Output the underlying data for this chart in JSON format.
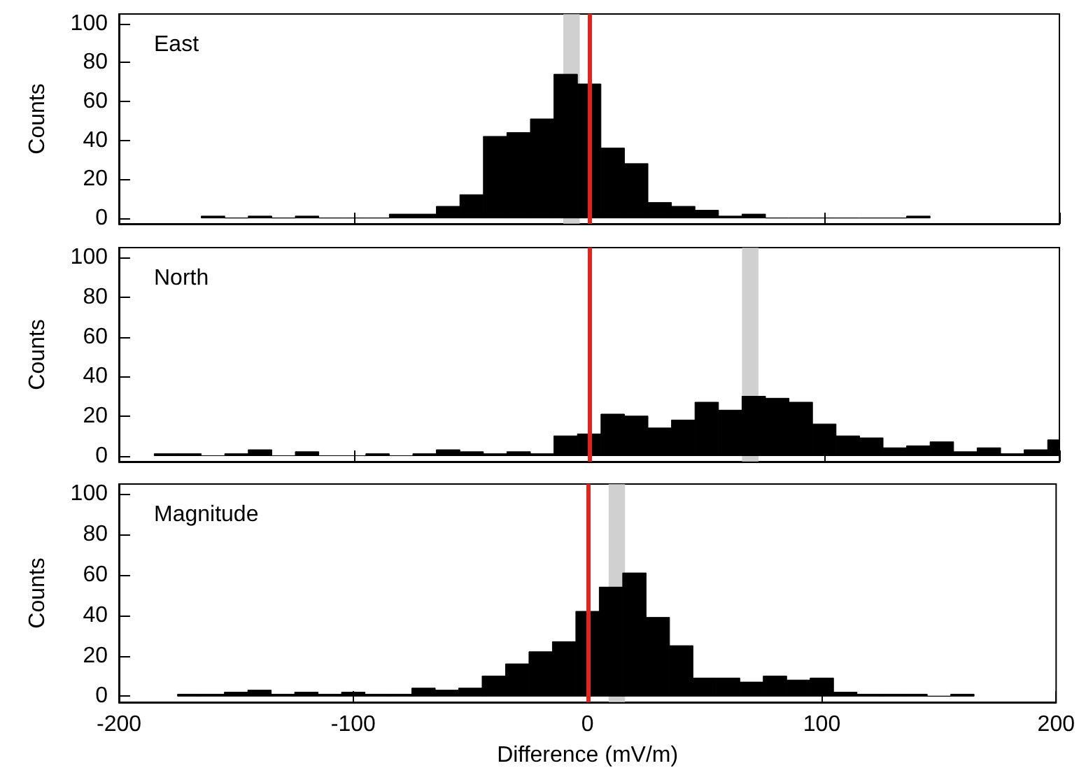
{
  "chart_data": [
    {
      "type": "histogram",
      "ylabel": "Counts",
      "annotations": [
        "East"
      ],
      "color": "#000000",
      "tick_labels": "y",
      "bins": [
        -165,
        -155,
        -145,
        -135,
        -125,
        -115,
        -105,
        -95,
        -85,
        -75,
        -65,
        -55,
        -45,
        -35,
        -25,
        -15,
        -5,
        5,
        15,
        25,
        35,
        45,
        55,
        65,
        75,
        85,
        95,
        105,
        115,
        125,
        135,
        145
      ],
      "values": [
        1,
        0,
        1,
        0,
        1,
        0,
        0,
        0,
        2,
        2,
        6,
        12,
        42,
        44,
        51,
        74,
        69,
        36,
        28,
        8,
        6,
        4,
        1,
        2,
        0,
        0,
        0,
        0,
        0,
        0,
        1
      ],
      "xlim": [
        -200,
        200
      ],
      "xticks": [
        -200,
        -100,
        0,
        100,
        200
      ],
      "ylim": [
        -3,
        105
      ],
      "yticks": [
        0,
        20,
        40,
        60,
        80,
        100
      ],
      "ref_lines": [
        {
          "axis": "x",
          "value": 0,
          "color": "#e3241c"
        }
      ],
      "bands": [
        {
          "axis": "x",
          "from": -11,
          "to": -4,
          "color": "#c4c4c4"
        }
      ]
    },
    {
      "type": "histogram",
      "ylabel": "Counts",
      "annotations": [
        "North"
      ],
      "color": "#000000",
      "tick_labels": "y",
      "bins": [
        -185,
        -175,
        -165,
        -155,
        -145,
        -135,
        -125,
        -115,
        -105,
        -95,
        -85,
        -75,
        -65,
        -55,
        -45,
        -35,
        -25,
        -15,
        -5,
        5,
        15,
        25,
        35,
        45,
        55,
        65,
        75,
        85,
        95,
        105,
        115,
        125,
        135,
        145,
        155,
        165,
        175,
        185,
        195,
        200
      ],
      "values": [
        1,
        1,
        0,
        1,
        3,
        0,
        2,
        0,
        0,
        1,
        0,
        1,
        3,
        2,
        1,
        2,
        1,
        10,
        11,
        21,
        20,
        14,
        18,
        27,
        23,
        30,
        29,
        27,
        16,
        10,
        9,
        4,
        5,
        7,
        2,
        4,
        1,
        3,
        8
      ],
      "xlim": [
        -200,
        200
      ],
      "xticks": [
        -200,
        -100,
        0,
        100,
        200
      ],
      "ylim": [
        -3,
        105
      ],
      "yticks": [
        0,
        20,
        40,
        60,
        80,
        100
      ],
      "ref_lines": [
        {
          "axis": "x",
          "value": 0,
          "color": "#e3241c"
        }
      ],
      "bands": [
        {
          "axis": "x",
          "from": 65,
          "to": 72,
          "color": "#c4c4c4"
        }
      ]
    },
    {
      "type": "histogram",
      "xlabel": "Difference (mV/m)",
      "ylabel": "Counts",
      "annotations": [
        "Magnitude"
      ],
      "color": "#000000",
      "bins": [
        -175,
        -165,
        -155,
        -145,
        -135,
        -125,
        -115,
        -105,
        -95,
        -85,
        -75,
        -65,
        -55,
        -45,
        -35,
        -25,
        -15,
        -5,
        5,
        15,
        25,
        35,
        45,
        55,
        65,
        75,
        85,
        95,
        105,
        115,
        125,
        135,
        145,
        155,
        165
      ],
      "values": [
        1,
        1,
        2,
        3,
        1,
        2,
        1,
        2,
        1,
        1,
        4,
        3,
        4,
        10,
        16,
        22,
        27,
        42,
        54,
        61,
        39,
        25,
        9,
        9,
        7,
        10,
        8,
        9,
        2,
        1,
        1,
        1,
        0,
        1
      ],
      "xlim": [
        -200,
        200
      ],
      "xticks": [
        -200,
        -100,
        0,
        100,
        200
      ],
      "ylim": [
        -3,
        105
      ],
      "yticks": [
        0,
        20,
        40,
        60,
        80,
        100
      ],
      "ref_lines": [
        {
          "axis": "x",
          "value": 0,
          "color": "#e3241c"
        }
      ],
      "bands": [
        {
          "axis": "x",
          "from": 9,
          "to": 16,
          "color": "#c4c4c4"
        }
      ]
    }
  ]
}
